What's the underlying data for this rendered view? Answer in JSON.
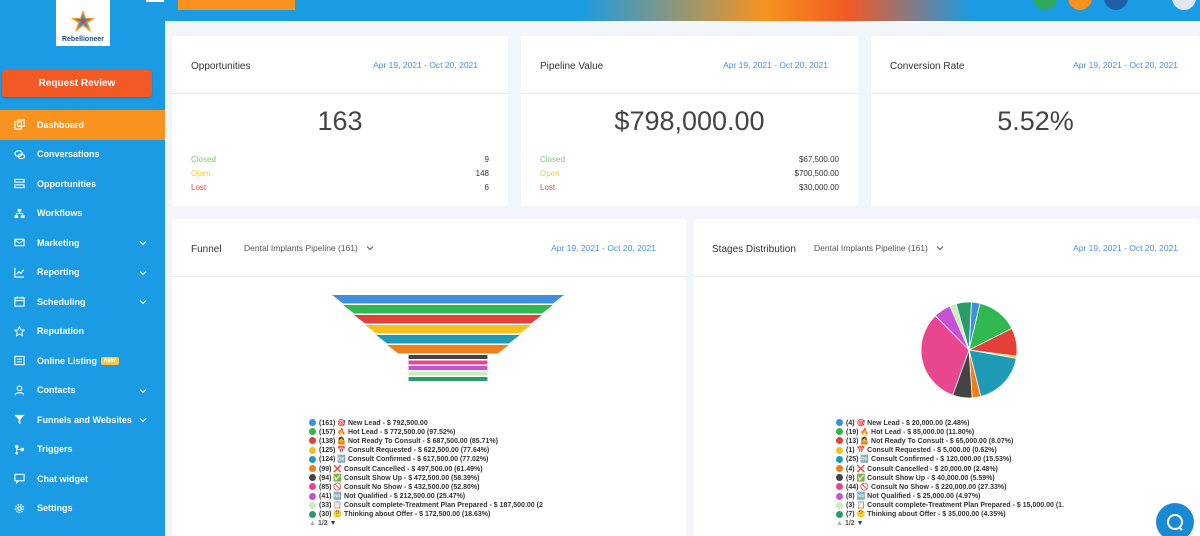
{
  "brand": {
    "logo_text": "Rebellioneer"
  },
  "sidebar": {
    "request_review_label": "Request Review",
    "items": [
      {
        "label": "Dashboard",
        "icon": "dashboard-icon",
        "active": true
      },
      {
        "label": "Conversations",
        "icon": "chat-bubbles-icon"
      },
      {
        "label": "Opportunities",
        "icon": "layers-icon"
      },
      {
        "label": "Workflows",
        "icon": "workflow-icon"
      },
      {
        "label": "Marketing",
        "icon": "mail-icon",
        "chevron": true
      },
      {
        "label": "Reporting",
        "icon": "line-chart-icon",
        "chevron": true
      },
      {
        "label": "Scheduling",
        "icon": "calendar-icon",
        "chevron": true
      },
      {
        "label": "Reputation",
        "icon": "star-icon"
      },
      {
        "label": "Online Listing",
        "icon": "listing-icon",
        "badge": "new"
      },
      {
        "label": "Contacts",
        "icon": "user-icon",
        "chevron": true
      },
      {
        "label": "Funnels and Websites",
        "icon": "filter-icon",
        "chevron": true
      },
      {
        "label": "Triggers",
        "icon": "trigger-icon"
      },
      {
        "label": "Chat widget",
        "icon": "chat-widget-icon"
      },
      {
        "label": "Settings",
        "icon": "gear-icon"
      }
    ]
  },
  "topbar": {
    "avatar_colors": [
      "#2eaa5c",
      "#f7931e",
      "#1f5fa8",
      "#3a7bd5"
    ]
  },
  "cards": {
    "opportunities": {
      "title": "Opportunities",
      "date": "Apr 19, 2021 - Oct 20, 2021",
      "value": "163",
      "closed_label": "Closed",
      "closed_value": "9",
      "open_label": "Open",
      "open_value": "148",
      "lost_label": "Lost",
      "lost_value": "6"
    },
    "pipeline": {
      "title": "Pipeline Value",
      "date": "Apr 19, 2021 - Oct 20, 2021",
      "value": "$798,000.00",
      "closed_label": "Closed",
      "closed_value": "$67,500.00",
      "open_label": "Open",
      "open_value": "$700,500.00",
      "lost_label": "Lost",
      "lost_value": "$30,000.00"
    },
    "conversion": {
      "title": "Conversion Rate",
      "date": "Apr 19, 2021 - Oct 20, 2021",
      "value": "5.52%"
    }
  },
  "funnel": {
    "title": "Funnel",
    "pipeline_select": "Dental Implants Pipeline (161)",
    "date": "Apr 19, 2021 - Oct 20, 2021",
    "pager": "1/2",
    "legend": [
      {
        "text": "(161) 🎯 New Lead - $ 792,500.00",
        "color": "#3d8fe0"
      },
      {
        "text": "(157) 🔥 Hot Lead - $ 772,500.00 (97.52%)",
        "color": "#2eb84f"
      },
      {
        "text": "(138) 🤷 Not Ready To Consult - $ 687,500.00 (85.71%)",
        "color": "#e2413a"
      },
      {
        "text": "(125) 📅 Consult Requested - $ 622,500.00 (77.64%)",
        "color": "#f5c21b"
      },
      {
        "text": "(124) 🆗 Consult Confirmed - $ 617,500.00 (77.02%)",
        "color": "#1f9bb5"
      },
      {
        "text": "(99) ❌ Consult Cancelled - $ 497,500.00 (61.49%)",
        "color": "#f07f1b"
      },
      {
        "text": "(94) ✅ Consult Show Up - $ 472,500.00 (58.39%)",
        "color": "#444444"
      },
      {
        "text": "(85) 🚫 Consult No Show - $ 432,500.00 (52.80%)",
        "color": "#e8478f"
      },
      {
        "text": "(41) 🆖 Not Qualified - $ 212,500.00 (25.47%)",
        "color": "#c651d6"
      },
      {
        "text": "(33) 📋 Consult complete-Treatment Plan Prepared - $ 187,500.00 (2",
        "color": "#c9ecc1"
      },
      {
        "text": "(30) 🤔 Thinking about Offer - $ 172,500.00 (18.63%)",
        "color": "#2a9a6a"
      }
    ],
    "bar_colors": [
      "#3d8fe0",
      "#2eb84f",
      "#e2413a",
      "#f5c21b",
      "#1f9bb5",
      "#f07f1b",
      "#444444",
      "#e8478f",
      "#c651d6",
      "#c9ecc1",
      "#2a9a6a"
    ]
  },
  "stages": {
    "title": "Stages Distribution",
    "pipeline_select": "Dental Implants Pipeline (161)",
    "date": "Apr 19, 2021 - Oct 20, 2021",
    "pager": "1/2",
    "legend": [
      {
        "text": "(4) 🎯 New Lead - $ 20,000.00 (2.48%)",
        "color": "#3d8fe0"
      },
      {
        "text": "(19) 🔥 Hot Lead - $ 85,000.00 (11.80%)",
        "color": "#2eb84f"
      },
      {
        "text": "(13) 🤷 Not Ready To Consult - $ 65,000.00 (8.07%)",
        "color": "#e2413a"
      },
      {
        "text": "(1) 📅 Consult Requested - $ 5,000.00 (0.62%)",
        "color": "#f5c21b"
      },
      {
        "text": "(25) 🆗 Consult Confirmed - $ 120,000.00 (15.53%)",
        "color": "#1f9bb5"
      },
      {
        "text": "(4) ❌ Consult Cancelled - $ 20,000.00 (2.48%)",
        "color": "#f07f1b"
      },
      {
        "text": "(9) ✅ Consult Show Up - $ 40,000.00 (5.59%)",
        "color": "#444444"
      },
      {
        "text": "(44) 🚫 Consult No Show - $ 220,000.00 (27.33%)",
        "color": "#e8478f"
      },
      {
        "text": "(8) 🆖 Not Qualified - $ 25,000.00 (4.97%)",
        "color": "#c651d6"
      },
      {
        "text": "(3) 📋 Consult complete-Treatment Plan Prepared - $ 15,000.00 (1.",
        "color": "#c9ecc1"
      },
      {
        "text": "(7) 🤔 Thinking about Offer - $ 35,000.00 (4.35%)",
        "color": "#2a9a6a"
      }
    ]
  },
  "chart_data": [
    {
      "type": "bar",
      "categories": [
        "New Lead",
        "Hot Lead",
        "Not Ready To Consult",
        "Consult Requested",
        "Consult Confirmed",
        "Consult Cancelled",
        "Consult Show Up",
        "Consult No Show",
        "Not Qualified",
        "Consult complete-Treatment Plan Prepared",
        "Thinking about Offer"
      ],
      "values": [
        161,
        157,
        138,
        125,
        124,
        99,
        94,
        85,
        41,
        33,
        30
      ]
    },
    {
      "type": "pie",
      "categories": [
        "New Lead",
        "Hot Lead",
        "Not Ready To Consult",
        "Consult Requested",
        "Consult Confirmed",
        "Consult Cancelled",
        "Consult Show Up",
        "Consult No Show",
        "Not Qualified",
        "Consult complete-Treatment Plan Prepared",
        "Thinking about Offer"
      ],
      "values": [
        2.48,
        11.8,
        8.07,
        0.62,
        15.53,
        2.48,
        5.59,
        27.33,
        4.97,
        1.86,
        4.35
      ],
      "colors": [
        "#3d8fe0",
        "#2eb84f",
        "#e2413a",
        "#f5c21b",
        "#1f9bb5",
        "#f07f1b",
        "#444444",
        "#e8478f",
        "#c651d6",
        "#c9ecc1",
        "#2a9a6a"
      ]
    }
  ]
}
